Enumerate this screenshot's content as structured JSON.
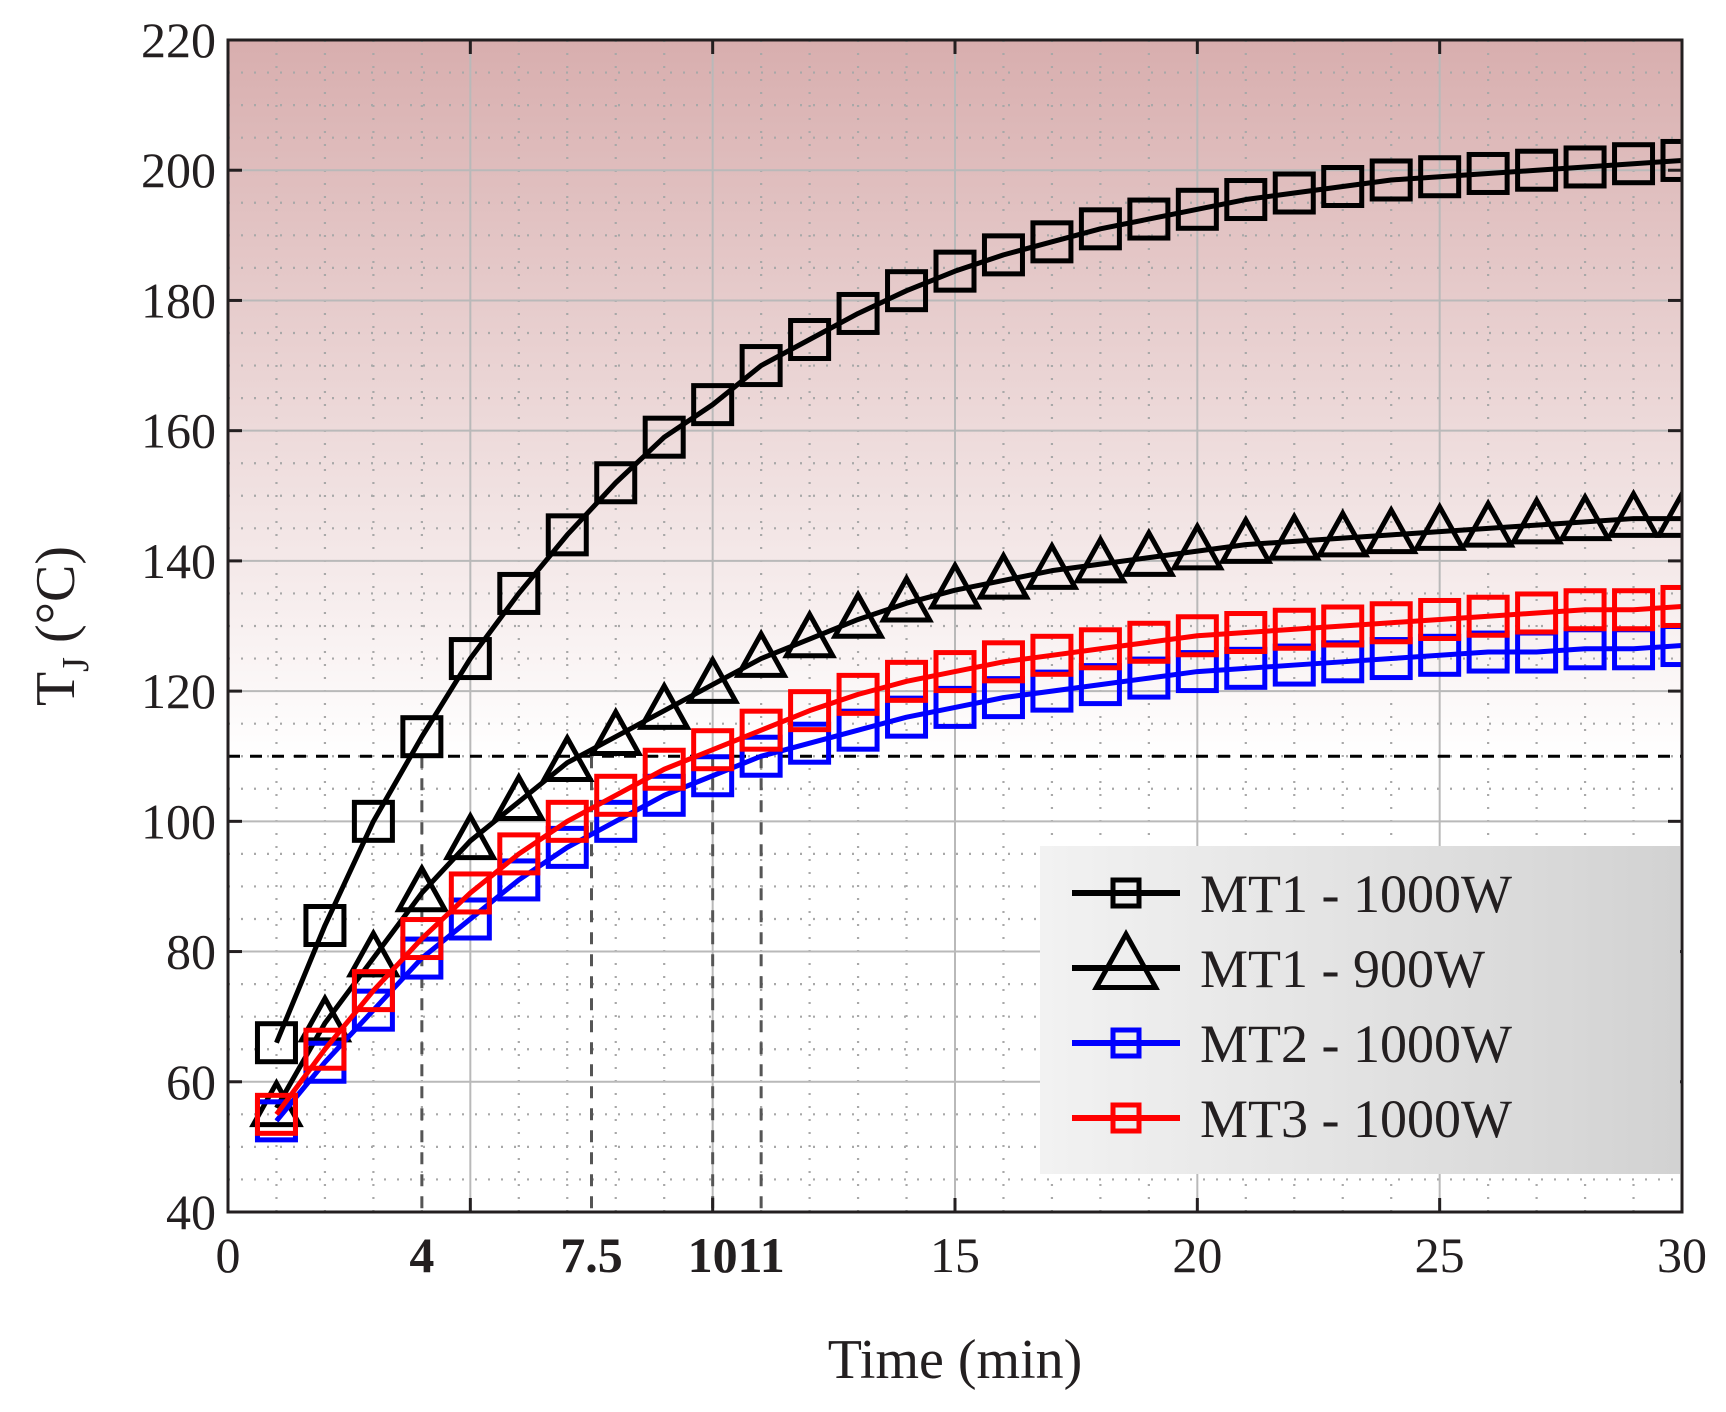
{
  "chart_data": {
    "type": "line",
    "title": "",
    "xlabel": "Time (min)",
    "ylabel": "T",
    "ylabel_subscript": "J",
    "ylabel_unit": " (°C)",
    "xlim": [
      0,
      30
    ],
    "ylim": [
      40,
      220
    ],
    "x_ticks": [
      {
        "value": 0,
        "label": "0",
        "bold": false
      },
      {
        "value": 4,
        "label": "4",
        "bold": true
      },
      {
        "value": 7.5,
        "label": "7.5",
        "bold": true
      },
      {
        "value": 10,
        "label": "10",
        "bold": true
      },
      {
        "value": 11,
        "label": "11",
        "bold": true
      },
      {
        "value": 15,
        "label": "15",
        "bold": false
      },
      {
        "value": 20,
        "label": "20",
        "bold": false
      },
      {
        "value": 25,
        "label": "25",
        "bold": false
      },
      {
        "value": 30,
        "label": "30",
        "bold": false
      }
    ],
    "y_ticks": [
      {
        "value": 40,
        "label": "40"
      },
      {
        "value": 60,
        "label": "60"
      },
      {
        "value": 80,
        "label": "80"
      },
      {
        "value": 100,
        "label": "100"
      },
      {
        "value": 120,
        "label": "120"
      },
      {
        "value": 140,
        "label": "140"
      },
      {
        "value": 160,
        "label": "160"
      },
      {
        "value": 180,
        "label": "180"
      },
      {
        "value": 200,
        "label": "200"
      },
      {
        "value": 220,
        "label": "220"
      }
    ],
    "grid": true,
    "threshold": {
      "y": 110,
      "style": "dashed",
      "shade_above": true
    },
    "crossing_markers": [
      4,
      7.5,
      10,
      11
    ],
    "legend_position": "bottom-right",
    "colors": {
      "shade_top": "#d8aeae",
      "shade_bottom": "#ffffff",
      "legend_bg_left": "#f2f2f2",
      "legend_bg_right": "#d2d2d2",
      "grid": "#b9b9b9",
      "text": "#231f20"
    },
    "x": [
      1,
      2,
      3,
      4,
      5,
      6,
      7,
      8,
      9,
      10,
      11,
      12,
      13,
      14,
      15,
      16,
      17,
      18,
      19,
      20,
      21,
      22,
      23,
      24,
      25,
      26,
      27,
      28,
      29,
      30
    ],
    "series": [
      {
        "name": "MT1 - 1000W",
        "marker": "square",
        "color": "#000000",
        "values": [
          66,
          84,
          100,
          113,
          125,
          135,
          144,
          152,
          159,
          164,
          170,
          174,
          178,
          181.5,
          184.5,
          187,
          189,
          191,
          192.5,
          194,
          195.5,
          196.5,
          197.5,
          198.5,
          199,
          199.5,
          200,
          200.5,
          201,
          201.5
        ]
      },
      {
        "name": "MT1 - 900W",
        "marker": "triangle",
        "color": "#000000",
        "values": [
          56,
          69,
          79,
          89,
          97,
          103,
          109,
          113,
          117,
          121,
          125,
          128,
          131,
          133.5,
          135.5,
          137,
          138.5,
          139.5,
          140.5,
          141.5,
          142.5,
          143,
          143.5,
          144,
          144.5,
          145,
          145.5,
          146,
          146.5,
          146.5
        ]
      },
      {
        "name": "MT2 - 1000W",
        "marker": "square",
        "color": "#0000ff",
        "values": [
          54,
          63,
          71,
          79,
          85,
          91,
          96,
          100,
          104,
          107,
          110,
          112,
          114,
          116,
          117.5,
          119,
          120,
          121,
          122,
          123,
          123.5,
          124,
          124.5,
          125,
          125.5,
          126,
          126,
          126.5,
          126.5,
          127
        ]
      },
      {
        "name": "MT3 - 1000W",
        "marker": "square",
        "color": "#ff0000",
        "values": [
          55,
          65,
          74,
          82,
          89,
          95,
          100,
          104,
          108,
          111,
          114,
          117,
          119.5,
          121.5,
          123,
          124.5,
          125.5,
          126.5,
          127.5,
          128.5,
          129,
          129.5,
          130,
          130.5,
          131,
          131.5,
          132,
          132.5,
          132.5,
          133
        ]
      }
    ]
  }
}
